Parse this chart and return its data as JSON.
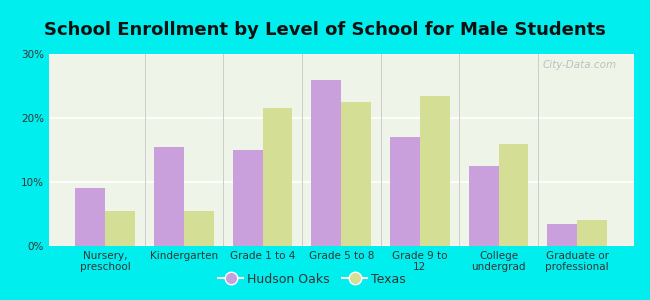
{
  "title": "School Enrollment by Level of School for Male Students",
  "categories": [
    "Nursery,\npreschool",
    "Kindergarten",
    "Grade 1 to 4",
    "Grade 5 to 8",
    "Grade 9 to\n12",
    "College\nundergrad",
    "Graduate or\nprofessional"
  ],
  "hudson_oaks": [
    9.0,
    15.5,
    15.0,
    26.0,
    17.0,
    12.5,
    3.5
  ],
  "texas": [
    5.5,
    5.5,
    21.5,
    22.5,
    23.5,
    16.0,
    4.0
  ],
  "hudson_oaks_color": "#c9a0dc",
  "texas_color": "#d4de94",
  "background_color": "#00eeee",
  "plot_bg_color": "#eef5e8",
  "ylim": [
    0,
    30
  ],
  "yticks": [
    0,
    10,
    20,
    30
  ],
  "ytick_labels": [
    "0%",
    "10%",
    "20%",
    "30%"
  ],
  "legend_labels": [
    "Hudson Oaks",
    "Texas"
  ],
  "title_fontsize": 13,
  "tick_fontsize": 7.5,
  "bar_width": 0.38,
  "watermark": "City-Data.com"
}
